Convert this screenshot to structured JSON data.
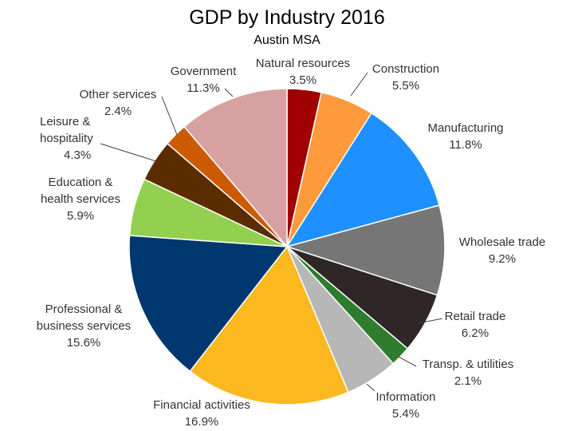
{
  "chart_data": {
    "type": "pie",
    "title": "GDP by Industry 2016",
    "subtitle": "Austin MSA",
    "slices": [
      {
        "label": "Natural resources",
        "value": 3.5,
        "display": "3.5%",
        "color": "#a10000"
      },
      {
        "label": "Construction",
        "value": 5.5,
        "display": "5.5%",
        "color": "#ff9a3c"
      },
      {
        "label": "Manufacturing",
        "value": 11.8,
        "display": "11.8%",
        "color": "#1e90ff"
      },
      {
        "label": "Wholesale trade",
        "value": 9.2,
        "display": "9.2%",
        "color": "#767676"
      },
      {
        "label": "Retail trade",
        "value": 6.2,
        "display": "6.2%",
        "color": "#2f2626"
      },
      {
        "label": "Transp. & utilities",
        "value": 2.1,
        "display": "2.1%",
        "color": "#2e7d2e"
      },
      {
        "label": "Information",
        "value": 5.4,
        "display": "5.4%",
        "color": "#b7b7b7"
      },
      {
        "label": "Financial activities",
        "value": 16.9,
        "display": "16.9%",
        "color": "#fbb81f"
      },
      {
        "label": "Professional & business services",
        "value": 15.6,
        "display": "15.6%",
        "color": "#00376f"
      },
      {
        "label": "Education & health services",
        "value": 5.9,
        "display": "5.9%",
        "color": "#93d050"
      },
      {
        "label": "Leisure & hospitality",
        "value": 4.3,
        "display": "4.3%",
        "color": "#5a2c00"
      },
      {
        "label": "Other services",
        "value": 2.4,
        "display": "2.4%",
        "color": "#cc5a00"
      },
      {
        "label": "Government",
        "value": 11.3,
        "display": "11.3%",
        "color": "#d8a1a1"
      }
    ]
  }
}
